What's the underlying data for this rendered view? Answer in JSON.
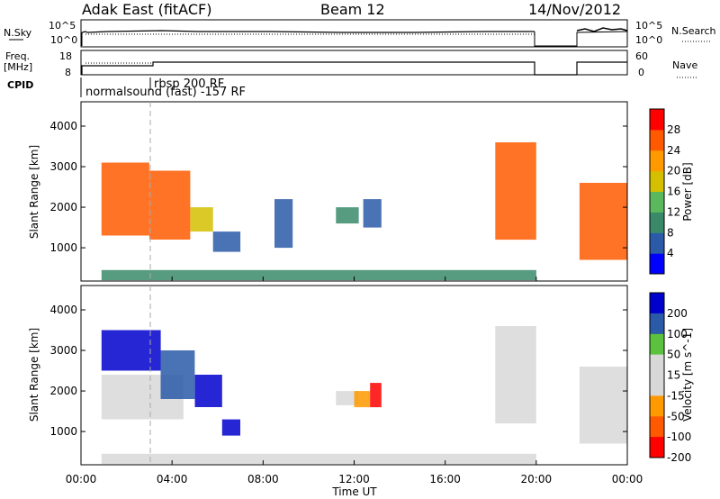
{
  "header": {
    "station": "Adak East (fitACF)",
    "beam": "Beam 12",
    "date": "14/Nov/2012"
  },
  "top_panels": {
    "nsky_label": "N.Sky",
    "nsky_ticks": [
      "10^5",
      "10^0"
    ],
    "nsearch_label": "N.Search",
    "nsearch_ticks": [
      "10^5",
      "10^0"
    ],
    "freq_label_1": "Freq.",
    "freq_label_2": "[MHz]",
    "freq_ticks": [
      "18",
      "8"
    ],
    "nave_label": "Nave",
    "nave_ticks": [
      "60",
      "0"
    ],
    "cpid_label": "CPID",
    "cpid_modes": [
      "rbsp 200 RF",
      "normalsound (fast) -157 RF"
    ]
  },
  "colors": {
    "power": [
      "#0000ff",
      "#2a5aa8",
      "#3a8a6a",
      "#5cb85c",
      "#d4c000",
      "#ff9900",
      "#ff5a00",
      "#ff0000"
    ],
    "velocity": [
      "#0000cc",
      "#2a5aa8",
      "#5cc23e",
      "#d8d8d8",
      "#d8d8d8",
      "#ff9900",
      "#ff5a00",
      "#ff0000"
    ]
  },
  "chart_data": [
    {
      "type": "heatmap",
      "name": "Power",
      "xlabel": "",
      "ylabel": "Slant Range [km]",
      "xlim": [
        "00:00",
        "24:00"
      ],
      "ylim": [
        180,
        4600
      ],
      "yticks": [
        "1000",
        "2000",
        "3000",
        "4000"
      ],
      "colorbar": {
        "label": "Power [dB]",
        "ticks": [
          "4",
          "8",
          "12",
          "16",
          "20",
          "24",
          "28"
        ],
        "range": [
          0,
          32
        ]
      },
      "regions": [
        {
          "t0": 0.9,
          "t1": 3.0,
          "r0": 1300,
          "r1": 3100,
          "value": 27
        },
        {
          "t0": 3.0,
          "t1": 4.8,
          "r0": 1200,
          "r1": 2900,
          "value": 26
        },
        {
          "t0": 4.8,
          "t1": 5.8,
          "r0": 1400,
          "r1": 2000,
          "value": 18
        },
        {
          "t0": 5.8,
          "t1": 7.0,
          "r0": 900,
          "r1": 1400,
          "value": 6
        },
        {
          "t0": 8.5,
          "t1": 9.3,
          "r0": 1000,
          "r1": 2200,
          "value": 5
        },
        {
          "t0": 11.2,
          "t1": 12.2,
          "r0": 1600,
          "r1": 2000,
          "value": 8
        },
        {
          "t0": 12.4,
          "t1": 13.2,
          "r0": 1500,
          "r1": 2200,
          "value": 6
        },
        {
          "t0": 18.2,
          "t1": 20.0,
          "r0": 1200,
          "r1": 3600,
          "value": 24
        },
        {
          "t0": 21.9,
          "t1": 24.0,
          "r0": 700,
          "r1": 2600,
          "value": 27
        },
        {
          "t0": 0.9,
          "t1": 20.0,
          "r0": 200,
          "r1": 450,
          "value": 10
        }
      ]
    },
    {
      "type": "heatmap",
      "name": "Velocity",
      "xlabel": "Time UT",
      "ylabel": "Slant Range [km]",
      "xlim": [
        "00:00",
        "24:00"
      ],
      "xticks": [
        "00:00",
        "04:00",
        "08:00",
        "12:00",
        "16:00",
        "20:00",
        "00:00"
      ],
      "ylim": [
        180,
        4600
      ],
      "yticks": [
        "1000",
        "2000",
        "3000",
        "4000"
      ],
      "colorbar": {
        "label": "Velocity [m s^-1]",
        "ticks": [
          "200",
          "100",
          "50",
          "15",
          "-15",
          "-50",
          "-100",
          "-200"
        ],
        "range": [
          -250,
          250
        ]
      },
      "regions": [
        {
          "t0": 0.9,
          "t1": 3.5,
          "r0": 2500,
          "r1": 3500,
          "value": 200
        },
        {
          "t0": 0.9,
          "t1": 4.5,
          "r0": 1300,
          "r1": 2400,
          "value": 0
        },
        {
          "t0": 3.5,
          "t1": 5.0,
          "r0": 1800,
          "r1": 3000,
          "value": 150
        },
        {
          "t0": 5.0,
          "t1": 6.2,
          "r0": 1600,
          "r1": 2400,
          "value": 220
        },
        {
          "t0": 6.2,
          "t1": 7.0,
          "r0": 900,
          "r1": 1300,
          "value": 200
        },
        {
          "t0": 11.2,
          "t1": 12.2,
          "r0": 1650,
          "r1": 2000,
          "value": 60
        },
        {
          "t0": 12.0,
          "t1": 12.7,
          "r0": 1600,
          "r1": 2000,
          "value": -80
        },
        {
          "t0": 12.7,
          "t1": 13.2,
          "r0": 1600,
          "r1": 2200,
          "value": -200
        },
        {
          "t0": 18.2,
          "t1": 20.0,
          "r0": 1200,
          "r1": 3600,
          "value": 30
        },
        {
          "t0": 21.9,
          "t1": 24.0,
          "r0": 700,
          "r1": 2600,
          "value": 0
        },
        {
          "t0": 0.9,
          "t1": 20.0,
          "r0": 200,
          "r1": 450,
          "value": -40
        }
      ]
    }
  ]
}
